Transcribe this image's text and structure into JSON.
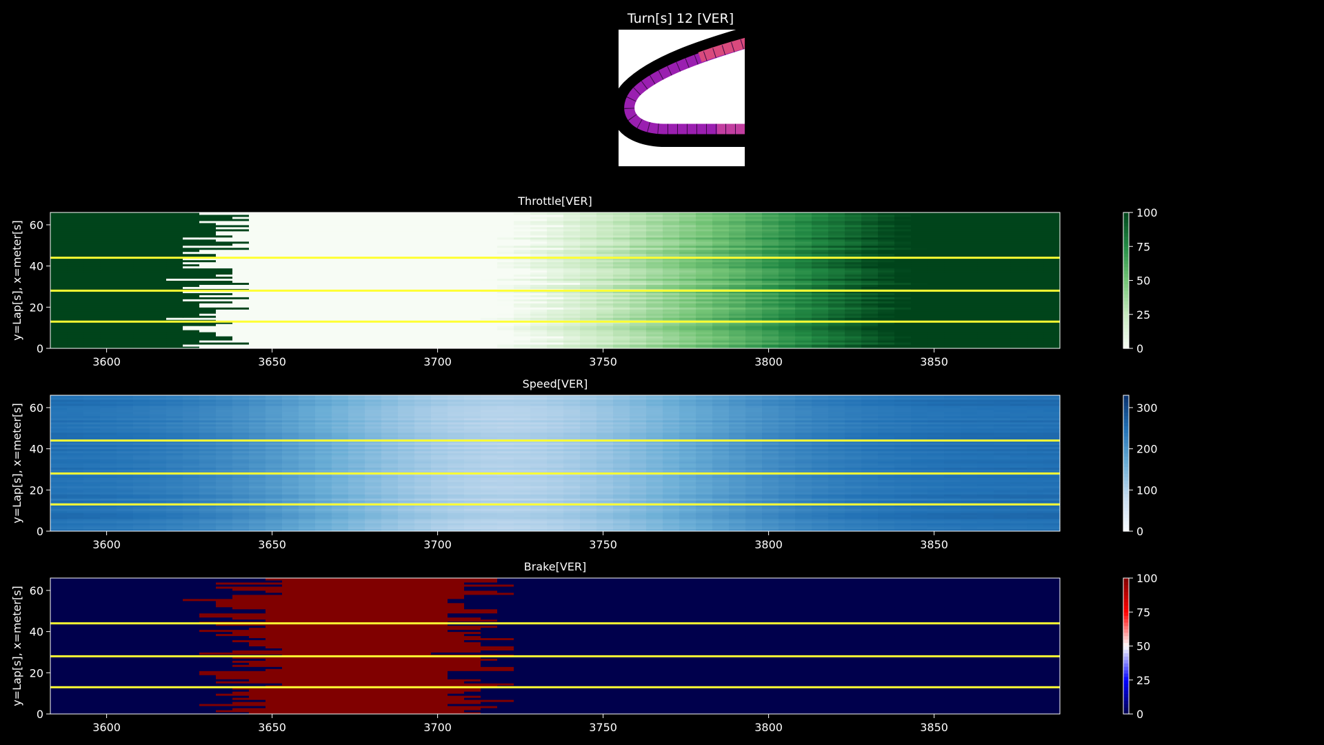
{
  "figure": {
    "title": "Turn[s] 12 [VER]",
    "background": "#000000",
    "lap_marker_color": "#ffff33"
  },
  "chart_data": [
    {
      "type": "heatmap",
      "title": "Throttle[VER]",
      "xlabel": "",
      "ylabel": "y=Lap[s], x=meter[s]",
      "xlim": [
        3583,
        3888
      ],
      "ylim": [
        0,
        66
      ],
      "x_ticks": [
        3600,
        3650,
        3700,
        3750,
        3800,
        3850
      ],
      "y_ticks": [
        0,
        20,
        40,
        60
      ],
      "colormap": "Greens",
      "colorbar_ticks": [
        0,
        25,
        50,
        75,
        100
      ],
      "clim": [
        0,
        100
      ],
      "lap_lines": [
        13,
        28,
        44
      ],
      "grid": false
    },
    {
      "type": "heatmap",
      "title": "Speed[VER]",
      "xlabel": "",
      "ylabel": "y=Lap[s], x=meter[s]",
      "xlim": [
        3583,
        3888
      ],
      "ylim": [
        0,
        66
      ],
      "x_ticks": [
        3600,
        3650,
        3700,
        3750,
        3800,
        3850
      ],
      "y_ticks": [
        0,
        20,
        40,
        60
      ],
      "colormap": "Blues",
      "colorbar_ticks": [
        0,
        100,
        200,
        300
      ],
      "clim": [
        0,
        330
      ],
      "lap_lines": [
        13,
        28,
        44
      ],
      "grid": false
    },
    {
      "type": "heatmap",
      "title": "Brake[VER]",
      "xlabel": "",
      "ylabel": "y=Lap[s], x=meter[s]",
      "xlim": [
        3583,
        3888
      ],
      "ylim": [
        0,
        66
      ],
      "x_ticks": [
        3600,
        3650,
        3700,
        3750,
        3800,
        3850
      ],
      "y_ticks": [
        0,
        20,
        40,
        60
      ],
      "colormap": "seismic",
      "colorbar_ticks": [
        0,
        25,
        50,
        75,
        100
      ],
      "clim": [
        0,
        100
      ],
      "lap_lines": [
        13,
        28,
        44
      ],
      "grid": false
    }
  ]
}
